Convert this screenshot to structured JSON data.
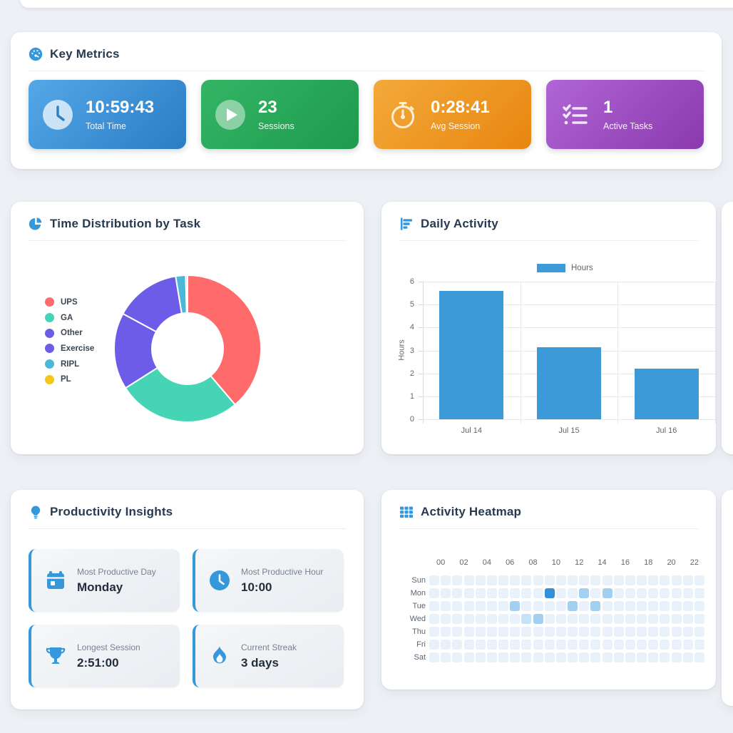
{
  "page": {
    "background": "#edf0f4",
    "accent": "#3498db"
  },
  "key_metrics": {
    "title": "Key Metrics",
    "cards": [
      {
        "value": "10:59:43",
        "label": "Total Time",
        "icon": "clock-icon",
        "gradient": [
          "#54a8e8",
          "#2b7cc4"
        ]
      },
      {
        "value": "23",
        "label": "Sessions",
        "icon": "play-icon",
        "gradient": [
          "#33b564",
          "#1f9a4e"
        ]
      },
      {
        "value": "0:28:41",
        "label": "Avg Session",
        "icon": "stopwatch-icon",
        "gradient": [
          "#f3a93a",
          "#e8860f"
        ]
      },
      {
        "value": "1",
        "label": "Active Tasks",
        "icon": "checklist-icon",
        "gradient": [
          "#b065d6",
          "#8a3aad"
        ]
      }
    ]
  },
  "time_distribution": {
    "title": "Time Distribution by Task"
  },
  "daily_activity": {
    "title": "Daily Activity"
  },
  "productivity_insights": {
    "title": "Productivity Insights",
    "cards": [
      {
        "label": "Most Productive Day",
        "value": "Monday",
        "icon": "calendar-icon"
      },
      {
        "label": "Most Productive Hour",
        "value": "10:00",
        "icon": "clock-icon"
      },
      {
        "label": "Longest Session",
        "value": "2:51:00",
        "icon": "trophy-icon"
      },
      {
        "label": "Current Streak",
        "value": "3 days",
        "icon": "flame-icon"
      }
    ]
  },
  "activity_heatmap": {
    "title": "Activity Heatmap"
  },
  "chart_data": [
    {
      "type": "pie",
      "title": "Time Distribution by Task",
      "donut": true,
      "legend_position": "left",
      "labels": [
        "UPS",
        "GA",
        "Other",
        "Exercise",
        "RIPL",
        "PL"
      ],
      "values": [
        38.8,
        27.2,
        16.9,
        14.5,
        2.2,
        0.4
      ],
      "unit": "percent_of_total_time",
      "colors": [
        "#ff6b6b",
        "#45d5b5",
        "#6c5ce7",
        "#6c5ce7",
        "#4ab8d6",
        "#f5c518"
      ]
    },
    {
      "type": "bar",
      "title": "Daily Activity",
      "series_name": "Hours",
      "categories": [
        "Jul 14",
        "Jul 15",
        "Jul 16"
      ],
      "values": [
        5.6,
        3.15,
        2.2
      ],
      "ylabel": "Hours",
      "ylim": [
        0,
        6
      ],
      "yticks": [
        0,
        1,
        2,
        3,
        4,
        5,
        6
      ],
      "bar_color": "#3d9ad9",
      "grid": true,
      "legend_position": "top"
    },
    {
      "type": "heatmap",
      "title": "Activity Heatmap",
      "rows": [
        "Sun",
        "Mon",
        "Tue",
        "Wed",
        "Thu",
        "Fri",
        "Sat"
      ],
      "col_labels": [
        "00",
        "02",
        "04",
        "06",
        "08",
        "10",
        "12",
        "14",
        "16",
        "18",
        "20",
        "22"
      ],
      "n_cols": 24,
      "cells": {
        "Mon": {
          "10": 3,
          "13": 2,
          "15": 2
        },
        "Tue": {
          "7": 2,
          "12": 2,
          "14": 2
        },
        "Wed": {
          "8": 1,
          "9": 2
        }
      },
      "level_colors": [
        "#e9f2fb",
        "#c6e2f8",
        "#a3d0f0",
        "#3390d8"
      ]
    }
  ]
}
